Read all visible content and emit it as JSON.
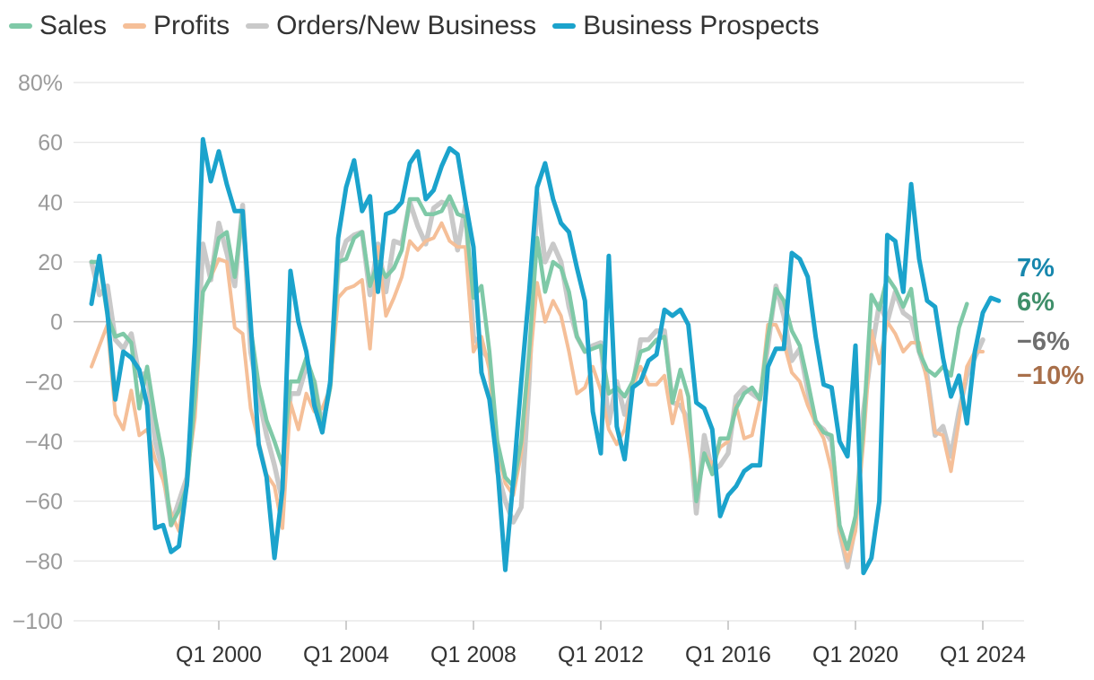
{
  "chart_data": {
    "type": "line",
    "title": "",
    "xlabel": "",
    "ylabel": "",
    "x_start": "Q1 1996",
    "frequency": "quarterly",
    "x_tick_labels": [
      "Q1 2000",
      "Q1 2004",
      "Q1 2008",
      "Q1 2012",
      "Q1 2016",
      "Q1 2020",
      "Q1 2024"
    ],
    "y_ticks": [
      80,
      60,
      40,
      20,
      0,
      -20,
      -40,
      -60,
      -80,
      -100
    ],
    "y_tick_labels": [
      "80%",
      "60",
      "40",
      "20",
      "0",
      "−20",
      "−40",
      "−60",
      "−80",
      "−100"
    ],
    "ylim": [
      -100,
      80
    ],
    "legend_position": "top-left",
    "series": [
      {
        "name": "Sales",
        "color": "#7fc9a7",
        "end_label": "6%",
        "end_label_color": "#3f8f6a",
        "values": [
          20,
          20,
          2,
          -5,
          -4,
          -7,
          -29,
          -15,
          -32,
          -46,
          -68,
          -63,
          -55,
          -25,
          10,
          15,
          28,
          30,
          15,
          37,
          -2,
          -21,
          -33,
          -40,
          -48,
          -20,
          -20,
          -12,
          -20,
          -36,
          -22,
          20,
          21,
          28,
          30,
          12,
          20,
          15,
          18,
          24,
          41,
          41,
          36,
          36,
          37,
          42,
          36,
          35,
          8,
          12,
          -10,
          -40,
          -52,
          -55,
          -40,
          -10,
          28,
          10,
          20,
          18,
          10,
          -5,
          -10,
          -9,
          -8,
          -24,
          -22,
          -25,
          -20,
          -10,
          -9,
          -6,
          -5,
          -27,
          -16,
          -25,
          -60,
          -44,
          -51,
          -39,
          -39,
          -29,
          -24,
          -22,
          -26,
          -5,
          11,
          7,
          -3,
          -8,
          -20,
          -33,
          -37,
          -38,
          -68,
          -76,
          -65,
          -35,
          9,
          4,
          15,
          11,
          5,
          11,
          -10,
          -16,
          -18,
          -15,
          -18,
          -2,
          6
        ]
      },
      {
        "name": "Profits",
        "color": "#f5bf98",
        "end_label": "−10%",
        "end_label_color": "#a86f4a",
        "values": [
          -15,
          -8,
          -1,
          -31,
          -36,
          -23,
          -38,
          -36,
          -46,
          -53,
          -64,
          -70,
          -52,
          -32,
          10,
          15,
          21,
          20,
          -2,
          -4,
          -29,
          -40,
          -51,
          -55,
          -69,
          -27,
          -36,
          -24,
          -30,
          -29,
          -22,
          8,
          11,
          12,
          14,
          -9,
          25,
          2,
          8,
          15,
          27,
          24,
          27,
          28,
          33,
          27,
          25,
          25,
          -10,
          -5,
          -16,
          -43,
          -54,
          -58,
          -44,
          -17,
          13,
          0,
          7,
          2,
          -10,
          -24,
          -22,
          -15,
          -23,
          -36,
          -41,
          -36,
          -22,
          -15,
          -21,
          -21,
          -18,
          -34,
          -23,
          -40,
          -58,
          -44,
          -48,
          -42,
          -40,
          -28,
          -39,
          -38,
          -26,
          -1,
          -1,
          -7,
          -17,
          -20,
          -28,
          -34,
          -39,
          -50,
          -70,
          -80,
          -70,
          -40,
          -3,
          -14,
          0,
          -4,
          -10,
          -7,
          -7,
          -20,
          -37,
          -38,
          -50,
          -33,
          -15,
          -10,
          -10
        ]
      },
      {
        "name": "Orders/New Business",
        "color": "#c9c9c9",
        "end_label": "−6%",
        "end_label_color": "#6f6f6f",
        "values": [
          20,
          9,
          12,
          -6,
          -9,
          -4,
          -18,
          -17,
          -40,
          -50,
          -68,
          -60,
          -52,
          -25,
          26,
          14,
          33,
          23,
          12,
          39,
          -10,
          -25,
          -38,
          -48,
          -60,
          -24,
          -24,
          -15,
          -20,
          -35,
          -21,
          19,
          27,
          29,
          30,
          9,
          26,
          10,
          27,
          26,
          40,
          32,
          26,
          38,
          40,
          39,
          24,
          39,
          -5,
          -9,
          -13,
          -50,
          -60,
          -67,
          -62,
          -20,
          43,
          20,
          26,
          20,
          5,
          -5,
          -10,
          -8,
          -7,
          -34,
          -20,
          -31,
          -22,
          -6,
          -6,
          -3,
          -3,
          -27,
          -28,
          -33,
          -64,
          -38,
          -50,
          -48,
          -44,
          -25,
          -22,
          -24,
          -26,
          -8,
          12,
          2,
          -13,
          -9,
          -23,
          -34,
          -36,
          -40,
          -70,
          -82,
          -68,
          -30,
          -10,
          6,
          0,
          10,
          3,
          1,
          -10,
          -18,
          -38,
          -35,
          -45,
          -30,
          -18,
          -12,
          -6
        ]
      },
      {
        "name": "Business Prospects",
        "color": "#1ba3cc",
        "end_label": "7%",
        "end_label_color": "#1787ad",
        "values": [
          6,
          22,
          3,
          -26,
          -10,
          -12,
          -16,
          -28,
          -69,
          -68,
          -77,
          -75,
          -54,
          -7,
          61,
          47,
          57,
          46,
          37,
          37,
          0,
          -41,
          -52,
          -79,
          -56,
          17,
          0,
          -10,
          -28,
          -37,
          -20,
          28,
          45,
          54,
          37,
          42,
          10,
          36,
          37,
          40,
          53,
          57,
          41,
          44,
          52,
          58,
          56,
          40,
          25,
          -17,
          -26,
          -48,
          -83,
          -53,
          -20,
          10,
          45,
          53,
          41,
          33,
          30,
          18,
          7,
          -30,
          -44,
          22,
          -35,
          -46,
          -22,
          -20,
          -13,
          -11,
          4,
          2,
          4,
          -1,
          -27,
          -29,
          -36,
          -65,
          -58,
          -55,
          -50,
          -48,
          -48,
          -15,
          -9,
          -9,
          23,
          21,
          15,
          -5,
          -21,
          -22,
          -40,
          -45,
          -8,
          -84,
          -79,
          -60,
          29,
          27,
          10,
          46,
          21,
          7,
          5,
          -12,
          -25,
          -18,
          -34,
          -10,
          3,
          8,
          7
        ]
      }
    ]
  }
}
